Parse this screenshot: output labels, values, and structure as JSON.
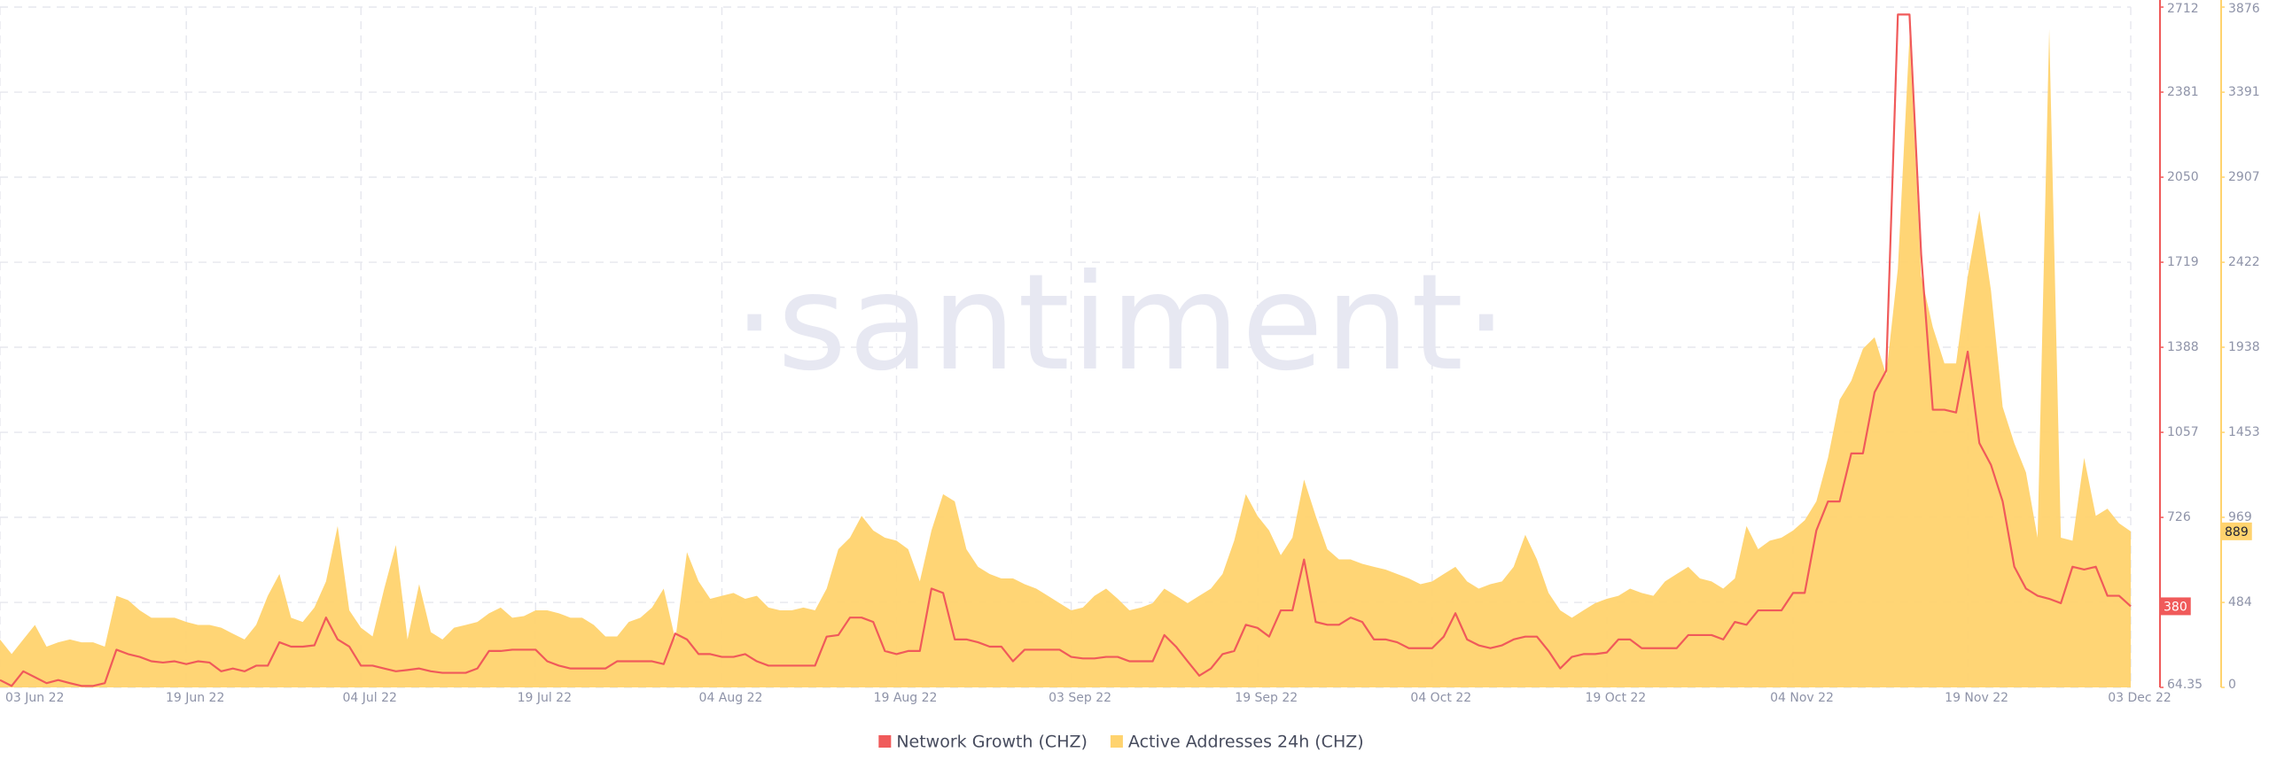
{
  "chart_data": {
    "type": "line-area",
    "watermark": "·santiment·",
    "x": [
      "2022-06-03",
      "2022-06-04",
      "2022-06-05",
      "2022-06-06",
      "2022-06-07",
      "2022-06-08",
      "2022-06-09",
      "2022-06-10",
      "2022-06-11",
      "2022-06-12",
      "2022-06-13",
      "2022-06-14",
      "2022-06-15",
      "2022-06-16",
      "2022-06-17",
      "2022-06-18",
      "2022-06-19",
      "2022-06-20",
      "2022-06-21",
      "2022-06-22",
      "2022-06-23",
      "2022-06-24",
      "2022-06-25",
      "2022-06-26",
      "2022-06-27",
      "2022-06-28",
      "2022-06-29",
      "2022-06-30",
      "2022-07-01",
      "2022-07-02",
      "2022-07-03",
      "2022-07-04",
      "2022-07-05",
      "2022-07-06",
      "2022-07-07",
      "2022-07-08",
      "2022-07-09",
      "2022-07-10",
      "2022-07-11",
      "2022-07-12",
      "2022-07-13",
      "2022-07-14",
      "2022-07-15",
      "2022-07-16",
      "2022-07-17",
      "2022-07-18",
      "2022-07-19",
      "2022-07-20",
      "2022-07-21",
      "2022-07-22",
      "2022-07-23",
      "2022-07-24",
      "2022-07-25",
      "2022-07-26",
      "2022-07-27",
      "2022-07-28",
      "2022-07-29",
      "2022-07-30",
      "2022-07-31",
      "2022-08-01",
      "2022-08-02",
      "2022-08-03",
      "2022-08-04",
      "2022-08-05",
      "2022-08-06",
      "2022-08-07",
      "2022-08-08",
      "2022-08-09",
      "2022-08-10",
      "2022-08-11",
      "2022-08-12",
      "2022-08-13",
      "2022-08-14",
      "2022-08-15",
      "2022-08-16",
      "2022-08-17",
      "2022-08-18",
      "2022-08-19",
      "2022-08-20",
      "2022-08-21",
      "2022-08-22",
      "2022-08-23",
      "2022-08-24",
      "2022-08-25",
      "2022-08-26",
      "2022-08-27",
      "2022-08-28",
      "2022-08-29",
      "2022-08-30",
      "2022-08-31",
      "2022-09-01",
      "2022-09-02",
      "2022-09-03",
      "2022-09-04",
      "2022-09-05",
      "2022-09-06",
      "2022-09-07",
      "2022-09-08",
      "2022-09-09",
      "2022-09-10",
      "2022-09-11",
      "2022-09-12",
      "2022-09-13",
      "2022-09-14",
      "2022-09-15",
      "2022-09-16",
      "2022-09-17",
      "2022-09-18",
      "2022-09-19",
      "2022-09-20",
      "2022-09-21",
      "2022-09-22",
      "2022-09-23",
      "2022-09-24",
      "2022-09-25",
      "2022-09-26",
      "2022-09-27",
      "2022-09-28",
      "2022-09-29",
      "2022-09-30",
      "2022-10-01",
      "2022-10-02",
      "2022-10-03",
      "2022-10-04",
      "2022-10-05",
      "2022-10-06",
      "2022-10-07",
      "2022-10-08",
      "2022-10-09",
      "2022-10-10",
      "2022-10-11",
      "2022-10-12",
      "2022-10-13",
      "2022-10-14",
      "2022-10-15",
      "2022-10-16",
      "2022-10-17",
      "2022-10-18",
      "2022-10-19",
      "2022-10-20",
      "2022-10-21",
      "2022-10-22",
      "2022-10-23",
      "2022-10-24",
      "2022-10-25",
      "2022-10-26",
      "2022-10-27",
      "2022-10-28",
      "2022-10-29",
      "2022-10-30",
      "2022-10-31",
      "2022-11-01",
      "2022-11-02",
      "2022-11-03",
      "2022-11-04",
      "2022-11-05",
      "2022-11-06",
      "2022-11-07",
      "2022-11-08",
      "2022-11-09",
      "2022-11-10",
      "2022-11-11",
      "2022-11-12",
      "2022-11-13",
      "2022-11-14",
      "2022-11-15",
      "2022-11-16",
      "2022-11-17",
      "2022-11-18",
      "2022-11-19",
      "2022-11-20",
      "2022-11-21",
      "2022-11-22",
      "2022-11-23",
      "2022-11-24",
      "2022-11-25",
      "2022-11-26",
      "2022-11-27",
      "2022-11-28",
      "2022-11-29",
      "2022-11-30",
      "2022-12-01",
      "2022-12-02",
      "2022-12-03"
    ],
    "xlim": [
      "2022-06-03",
      "2022-12-03"
    ],
    "xticks": [
      {
        "value": "2022-06-03",
        "label": "03 Jun 22"
      },
      {
        "value": "2022-06-19",
        "label": "19 Jun 22"
      },
      {
        "value": "2022-07-04",
        "label": "04 Jul 22"
      },
      {
        "value": "2022-07-19",
        "label": "19 Jul 22"
      },
      {
        "value": "2022-08-04",
        "label": "04 Aug 22"
      },
      {
        "value": "2022-08-19",
        "label": "19 Aug 22"
      },
      {
        "value": "2022-09-03",
        "label": "03 Sep 22"
      },
      {
        "value": "2022-09-19",
        "label": "19 Sep 22"
      },
      {
        "value": "2022-10-04",
        "label": "04 Oct 22"
      },
      {
        "value": "2022-10-19",
        "label": "19 Oct 22"
      },
      {
        "value": "2022-11-04",
        "label": "04 Nov 22"
      },
      {
        "value": "2022-11-19",
        "label": "19 Nov 22"
      },
      {
        "value": "2022-12-03",
        "label": "03 Dec 22"
      }
    ],
    "ylim": [
      0,
      3876
    ],
    "yticks": [
      0,
      484,
      969,
      1453,
      1938,
      2422,
      2907,
      3391,
      3876
    ],
    "y2lim": [
      64.35,
      2712
    ],
    "y2ticks": [
      64.35,
      726,
      1057,
      1388,
      1719,
      2050,
      2381,
      2712
    ],
    "grid": true,
    "series": [
      {
        "name": "Network Growth (CHZ)",
        "color": "#f05a5a",
        "axis": "y2",
        "type": "line",
        "values": [
          93,
          70,
          127,
          104,
          81,
          93,
          81,
          70,
          70,
          81,
          211,
          194,
          183,
          166,
          161,
          166,
          155,
          166,
          161,
          127,
          138,
          127,
          149,
          149,
          240,
          223,
          223,
          228,
          336,
          251,
          223,
          149,
          149,
          138,
          127,
          132,
          138,
          127,
          121,
          121,
          121,
          138,
          206,
          206,
          211,
          211,
          211,
          166,
          149,
          138,
          138,
          138,
          138,
          166,
          166,
          166,
          166,
          155,
          274,
          251,
          194,
          194,
          183,
          183,
          194,
          166,
          149,
          149,
          149,
          149,
          149,
          262,
          268,
          336,
          336,
          319,
          206,
          194,
          206,
          206,
          449,
          432,
          251,
          251,
          240,
          223,
          223,
          166,
          211,
          211,
          211,
          211,
          183,
          177,
          177,
          183,
          183,
          166,
          166,
          166,
          268,
          223,
          166,
          110,
          138,
          194,
          206,
          308,
          296,
          262,
          364,
          364,
          562,
          319,
          308,
          308,
          336,
          319,
          251,
          251,
          240,
          217,
          217,
          217,
          262,
          353,
          251,
          228,
          217,
          228,
          251,
          262,
          262,
          206,
          138,
          183,
          194,
          194,
          200,
          251,
          251,
          217,
          217,
          217,
          217,
          268,
          268,
          268,
          251,
          319,
          308,
          364,
          364,
          364,
          432,
          432,
          675,
          788,
          788,
          975,
          975,
          1213,
          1297,
          2683,
          2683,
          1750,
          1145,
          1145,
          1134,
          1371,
          1015,
          930,
          788,
          534,
          449,
          421,
          409,
          392,
          534,
          523,
          534,
          421,
          421,
          380
        ]
      },
      {
        "name": "Active Addresses 24h (CHZ)",
        "color": "#ffd36e",
        "axis": "y",
        "type": "area",
        "values": [
          273,
          190,
          273,
          356,
          232,
          257,
          273,
          257,
          257,
          232,
          522,
          497,
          439,
          397,
          397,
          397,
          373,
          356,
          356,
          340,
          306,
          273,
          356,
          522,
          646,
          397,
          373,
          455,
          604,
          919,
          439,
          340,
          290,
          563,
          811,
          273,
          588,
          315,
          273,
          340,
          356,
          373,
          422,
          455,
          397,
          406,
          439,
          439,
          422,
          397,
          397,
          356,
          290,
          290,
          373,
          397,
          455,
          563,
          273,
          770,
          604,
          505,
          522,
          538,
          505,
          522,
          455,
          439,
          439,
          455,
          439,
          563,
          787,
          853,
          977,
          894,
          853,
          836,
          787,
          604,
          894,
          1101,
          1060,
          787,
          687,
          646,
          621,
          621,
          588,
          563,
          522,
          480,
          439,
          455,
          522,
          563,
          505,
          439,
          455,
          480,
          563,
          522,
          480,
          522,
          563,
          646,
          836,
          1101,
          977,
          894,
          753,
          853,
          1184,
          977,
          787,
          729,
          729,
          704,
          687,
          671,
          646,
          621,
          588,
          604,
          646,
          687,
          604,
          563,
          588,
          604,
          687,
          869,
          729,
          538,
          439,
          397,
          439,
          480,
          505,
          522,
          563,
          538,
          522,
          604,
          646,
          687,
          621,
          604,
          563,
          621,
          919,
          787,
          836,
          853,
          894,
          952,
          1060,
          1308,
          1639,
          1747,
          1929,
          1995,
          1780,
          2385,
          3709,
          2343,
          2053,
          1846,
          1846,
          2343,
          2716,
          2260,
          1598,
          1391,
          1225,
          853,
          3751,
          853,
          836,
          1308,
          977,
          1018,
          935,
          889
        ]
      }
    ],
    "legend": "bottom"
  }
}
